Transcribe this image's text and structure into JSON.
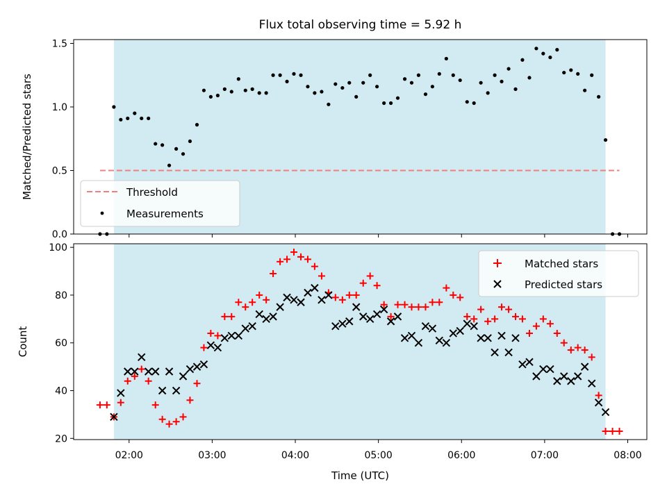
{
  "chart_data": [
    {
      "type": "scatter",
      "title": "Flux total observing time = 5.92 h",
      "ylabel": "Matched/Predicted stars",
      "xlim_hours": [
        1.333,
        8.23
      ],
      "ylim": [
        0,
        1.53
      ],
      "y_ticks": [
        0.0,
        0.5,
        1.0,
        1.5
      ],
      "y_tick_labels": [
        "0.0",
        "0.5",
        "1.0",
        "1.5"
      ],
      "x_ticks": [
        2,
        3,
        4,
        5,
        6,
        7,
        8
      ],
      "observing_span_hours": [
        1.817,
        7.733
      ],
      "threshold": {
        "label": "Threshold",
        "value": 0.5,
        "x_range": [
          1.65,
          7.9
        ],
        "color": "#f08080"
      },
      "legend_position": "lower-left",
      "series": [
        {
          "name": "Measurements",
          "color": "#000000",
          "x": [
            1.65,
            1.733,
            1.817,
            1.9,
            1.983,
            2.067,
            2.15,
            2.233,
            2.317,
            2.4,
            2.483,
            2.567,
            2.65,
            2.733,
            2.817,
            2.9,
            2.983,
            3.067,
            3.15,
            3.233,
            3.317,
            3.4,
            3.483,
            3.567,
            3.65,
            3.733,
            3.817,
            3.9,
            3.983,
            4.067,
            4.15,
            4.233,
            4.317,
            4.4,
            4.483,
            4.567,
            4.65,
            4.733,
            4.817,
            4.9,
            4.983,
            5.067,
            5.15,
            5.233,
            5.317,
            5.4,
            5.483,
            5.567,
            5.65,
            5.733,
            5.817,
            5.9,
            5.983,
            6.067,
            6.15,
            6.233,
            6.317,
            6.4,
            6.483,
            6.567,
            6.65,
            6.733,
            6.817,
            6.9,
            6.983,
            7.067,
            7.15,
            7.233,
            7.317,
            7.4,
            7.483,
            7.567,
            7.65,
            7.733,
            7.817,
            7.9
          ],
          "y": [
            0,
            0,
            1.0,
            0.9,
            0.91,
            0.95,
            0.91,
            0.91,
            0.71,
            0.7,
            0.54,
            0.67,
            0.63,
            0.73,
            0.86,
            1.13,
            1.08,
            1.09,
            1.14,
            1.12,
            1.22,
            1.13,
            1.14,
            1.11,
            1.11,
            1.25,
            1.25,
            1.2,
            1.26,
            1.25,
            1.16,
            1.11,
            1.12,
            1.02,
            1.18,
            1.15,
            1.19,
            1.08,
            1.19,
            1.25,
            1.16,
            1.03,
            1.03,
            1.07,
            1.22,
            1.19,
            1.25,
            1.1,
            1.16,
            1.26,
            1.38,
            1.25,
            1.21,
            1.04,
            1.03,
            1.19,
            1.11,
            1.25,
            1.2,
            1.3,
            1.14,
            1.37,
            1.23,
            1.46,
            1.42,
            1.39,
            1.45,
            1.27,
            1.29,
            1.26,
            1.13,
            1.25,
            1.08,
            0.74,
            0,
            0
          ]
        }
      ]
    },
    {
      "type": "scatter",
      "title": "",
      "xlabel": "Time (UTC)",
      "ylabel": "Count",
      "xlim_hours": [
        1.333,
        8.23
      ],
      "ylim": [
        19.5,
        101.5
      ],
      "y_ticks": [
        20,
        40,
        60,
        80,
        100
      ],
      "y_tick_labels": [
        "20",
        "40",
        "60",
        "80",
        "100"
      ],
      "x_ticks": [
        2,
        3,
        4,
        5,
        6,
        7,
        8
      ],
      "x_tick_labels": [
        "02:00",
        "03:00",
        "04:00",
        "05:00",
        "06:00",
        "07:00",
        "08:00"
      ],
      "observing_span_hours": [
        1.817,
        7.733
      ],
      "legend_position": "upper-right",
      "series": [
        {
          "name": "Matched stars",
          "marker": "plus",
          "color": "#ff0000",
          "x": [
            1.65,
            1.733,
            1.817,
            1.9,
            1.983,
            2.067,
            2.15,
            2.233,
            2.317,
            2.4,
            2.483,
            2.567,
            2.65,
            2.733,
            2.817,
            2.9,
            2.983,
            3.067,
            3.15,
            3.233,
            3.317,
            3.4,
            3.483,
            3.567,
            3.65,
            3.733,
            3.817,
            3.9,
            3.983,
            4.067,
            4.15,
            4.233,
            4.317,
            4.4,
            4.483,
            4.567,
            4.65,
            4.733,
            4.817,
            4.9,
            4.983,
            5.067,
            5.15,
            5.233,
            5.317,
            5.4,
            5.483,
            5.567,
            5.65,
            5.733,
            5.817,
            5.9,
            5.983,
            6.067,
            6.15,
            6.233,
            6.317,
            6.4,
            6.483,
            6.567,
            6.65,
            6.733,
            6.817,
            6.9,
            6.983,
            7.067,
            7.15,
            7.233,
            7.317,
            7.4,
            7.483,
            7.567,
            7.65,
            7.733,
            7.817,
            7.9
          ],
          "y": [
            34,
            34,
            29,
            35,
            44,
            46,
            49,
            44,
            34,
            28,
            26,
            27,
            29,
            36,
            43,
            58,
            64,
            63,
            71,
            71,
            77,
            75,
            77,
            80,
            78,
            89,
            94,
            95,
            98,
            96,
            95,
            92,
            88,
            81,
            79,
            78,
            80,
            80,
            85,
            88,
            84,
            76,
            71,
            76,
            76,
            75,
            75,
            75,
            77,
            77,
            83,
            80,
            79,
            71,
            70,
            74,
            69,
            70,
            75,
            74,
            71,
            70,
            64,
            67,
            70,
            68,
            64,
            60,
            57,
            58,
            57,
            54,
            38,
            23,
            23,
            23
          ]
        },
        {
          "name": "Predicted stars",
          "marker": "x",
          "color": "#000000",
          "x": [
            1.817,
            1.9,
            1.983,
            2.067,
            2.15,
            2.233,
            2.317,
            2.4,
            2.483,
            2.567,
            2.65,
            2.733,
            2.817,
            2.9,
            2.983,
            3.067,
            3.15,
            3.233,
            3.317,
            3.4,
            3.483,
            3.567,
            3.65,
            3.733,
            3.817,
            3.9,
            3.983,
            4.067,
            4.15,
            4.233,
            4.317,
            4.4,
            4.483,
            4.567,
            4.65,
            4.733,
            4.817,
            4.9,
            4.983,
            5.067,
            5.15,
            5.233,
            5.317,
            5.4,
            5.483,
            5.567,
            5.65,
            5.733,
            5.817,
            5.9,
            5.983,
            6.067,
            6.15,
            6.233,
            6.317,
            6.4,
            6.483,
            6.567,
            6.65,
            6.733,
            6.817,
            6.9,
            6.983,
            7.067,
            7.15,
            7.233,
            7.317,
            7.4,
            7.483,
            7.567,
            7.65,
            7.733
          ],
          "y": [
            29,
            39,
            48,
            48,
            54,
            48,
            48,
            40,
            48,
            40,
            46,
            49,
            50,
            51,
            59,
            58,
            62,
            63,
            63,
            66,
            67,
            72,
            70,
            71,
            75,
            79,
            78,
            77,
            81,
            83,
            78,
            80,
            67,
            68,
            69,
            75,
            71,
            70,
            72,
            74,
            69,
            71,
            62,
            63,
            60,
            67,
            66,
            61,
            60,
            64,
            65,
            68,
            67,
            62,
            62,
            56,
            63,
            56,
            62,
            51,
            52,
            46,
            49,
            49,
            44,
            46,
            44,
            46,
            50,
            43,
            35,
            31
          ]
        }
      ]
    }
  ]
}
